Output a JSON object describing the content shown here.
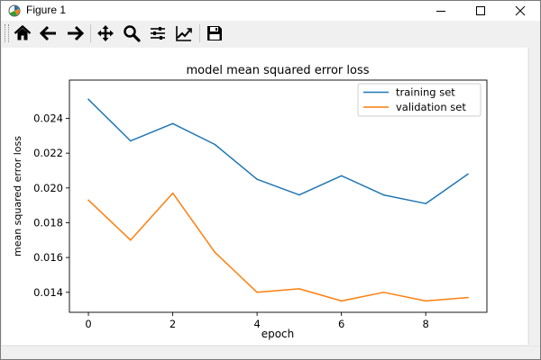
{
  "window": {
    "title": "Figure 1",
    "controls": {
      "minimize": "minimize",
      "maximize": "maximize",
      "close": "close"
    }
  },
  "toolbar": {
    "buttons": [
      {
        "name": "home",
        "icon": "home-icon"
      },
      {
        "name": "back",
        "icon": "arrow-left-icon"
      },
      {
        "name": "forward",
        "icon": "arrow-right-icon"
      },
      {
        "name": "pan",
        "icon": "move-icon"
      },
      {
        "name": "zoom",
        "icon": "zoom-icon"
      },
      {
        "name": "subplots",
        "icon": "sliders-icon"
      },
      {
        "name": "edit-axis",
        "icon": "line-chart-icon"
      },
      {
        "name": "save",
        "icon": "save-icon"
      }
    ]
  },
  "colors": {
    "training": "#1f77b4",
    "validation": "#ff7f0e"
  },
  "chart_data": {
    "type": "line",
    "title": "model mean squared error loss",
    "xlabel": "epoch",
    "ylabel": "mean squared error loss",
    "x": [
      0,
      1,
      2,
      3,
      4,
      5,
      6,
      7,
      8,
      9
    ],
    "xticks": [
      0,
      2,
      4,
      6,
      8
    ],
    "yticks": [
      0.014,
      0.016,
      0.018,
      0.02,
      0.022,
      0.024
    ],
    "ytick_labels": [
      "0.014",
      "0.016",
      "0.018",
      "0.020",
      "0.022",
      "0.024"
    ],
    "xlim": [
      -0.45,
      9.45
    ],
    "ylim": [
      0.01285,
      0.0262
    ],
    "grid": false,
    "legend": "top-right",
    "series": [
      {
        "name": "training set",
        "color": "#1f77b4",
        "values": [
          0.0251,
          0.0227,
          0.0237,
          0.0225,
          0.0205,
          0.0196,
          0.0207,
          0.0196,
          0.0191,
          0.0208
        ]
      },
      {
        "name": "validation set",
        "color": "#ff7f0e",
        "values": [
          0.0193,
          0.017,
          0.0197,
          0.0163,
          0.014,
          0.0142,
          0.0135,
          0.014,
          0.0135,
          0.0137
        ]
      }
    ]
  }
}
